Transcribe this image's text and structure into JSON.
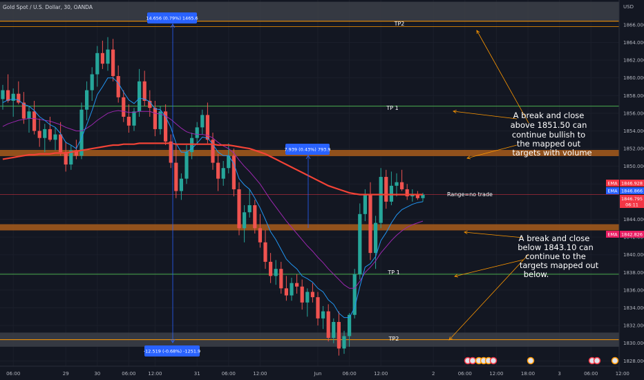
{
  "header": {
    "symbol_title": "Gold Spot / U.S. Dollar, 30, OANDA",
    "currency": "USD"
  },
  "chart_data": {
    "type": "candlestick",
    "title": "Gold Spot / U.S. Dollar, 30, OANDA",
    "ylabel": "USD",
    "ylim": [
      1827.4,
      1868.8
    ],
    "y_ticks": [
      1866.0,
      1864.0,
      1862.0,
      1860.0,
      1858.0,
      1856.0,
      1854.0,
      1852.0,
      1850.0,
      1848.0,
      1844.0,
      1842.0,
      1840.0,
      1838.0,
      1836.0,
      1834.0,
      1832.0,
      1830.0,
      1828.0
    ],
    "x_ticks": [
      {
        "label": "06:00",
        "i": 2
      },
      {
        "label": "29",
        "i": 12
      },
      {
        "label": "30",
        "i": 18
      },
      {
        "label": "06:00",
        "i": 24
      },
      {
        "label": "12:00",
        "i": 29
      },
      {
        "label": "31",
        "i": 37
      },
      {
        "label": "06:00",
        "i": 43
      },
      {
        "label": "12:00",
        "i": 49
      },
      {
        "label": "Jun",
        "i": 60
      },
      {
        "label": "06:00",
        "i": 66
      },
      {
        "label": "12:00",
        "i": 72
      },
      {
        "label": "2",
        "i": 82
      },
      {
        "label": "06:00",
        "i": 88
      },
      {
        "label": "12:00",
        "i": 94
      },
      {
        "label": "18:00",
        "i": 100
      },
      {
        "label": "3",
        "i": 106
      },
      {
        "label": "06:00",
        "i": 112
      },
      {
        "label": "12:00",
        "i": 118
      }
    ],
    "candles": [
      [
        1857.6,
        1859.2,
        1856.4,
        1858.6
      ],
      [
        1858.6,
        1860.4,
        1857.2,
        1857.4
      ],
      [
        1857.4,
        1858.8,
        1855.6,
        1858.2
      ],
      [
        1858.2,
        1859.6,
        1857.0,
        1857.2
      ],
      [
        1857.2,
        1858.4,
        1854.8,
        1855.4
      ],
      [
        1855.4,
        1856.8,
        1853.8,
        1856.2
      ],
      [
        1856.2,
        1857.4,
        1853.6,
        1854.0
      ],
      [
        1854.0,
        1855.4,
        1852.2,
        1853.2
      ],
      [
        1853.2,
        1854.8,
        1851.6,
        1854.2
      ],
      [
        1854.2,
        1855.6,
        1852.8,
        1853.0
      ],
      [
        1853.0,
        1854.4,
        1851.8,
        1853.6
      ],
      [
        1853.6,
        1855.0,
        1851.2,
        1851.6
      ],
      [
        1851.6,
        1852.8,
        1849.4,
        1850.2
      ],
      [
        1850.2,
        1852.4,
        1849.6,
        1851.8
      ],
      [
        1851.8,
        1853.0,
        1850.8,
        1851.2
      ],
      [
        1851.2,
        1857.2,
        1850.8,
        1856.4
      ],
      [
        1856.4,
        1859.6,
        1855.2,
        1858.6
      ],
      [
        1858.6,
        1861.2,
        1857.4,
        1860.4
      ],
      [
        1860.4,
        1863.6,
        1859.0,
        1862.8
      ],
      [
        1862.8,
        1864.2,
        1861.0,
        1861.6
      ],
      [
        1861.6,
        1864.6,
        1860.8,
        1863.2
      ],
      [
        1863.2,
        1864.4,
        1859.6,
        1860.2
      ],
      [
        1860.2,
        1861.4,
        1857.2,
        1857.8
      ],
      [
        1857.8,
        1858.6,
        1855.0,
        1855.6
      ],
      [
        1855.6,
        1857.0,
        1853.8,
        1854.6
      ],
      [
        1854.6,
        1856.6,
        1854.0,
        1856.2
      ],
      [
        1856.2,
        1861.0,
        1855.6,
        1859.6
      ],
      [
        1859.6,
        1860.8,
        1856.8,
        1857.4
      ],
      [
        1857.4,
        1858.6,
        1855.6,
        1856.6
      ],
      [
        1856.6,
        1857.4,
        1853.4,
        1854.2
      ],
      [
        1854.2,
        1856.8,
        1853.6,
        1856.2
      ],
      [
        1856.2,
        1857.0,
        1852.4,
        1852.8
      ],
      [
        1852.8,
        1853.6,
        1849.8,
        1850.4
      ],
      [
        1850.4,
        1852.6,
        1846.4,
        1847.2
      ],
      [
        1847.2,
        1849.2,
        1846.2,
        1848.6
      ],
      [
        1848.6,
        1852.4,
        1848.0,
        1851.6
      ],
      [
        1851.6,
        1853.8,
        1850.8,
        1853.2
      ],
      [
        1853.2,
        1855.0,
        1852.4,
        1854.4
      ],
      [
        1854.4,
        1856.4,
        1853.6,
        1855.8
      ],
      [
        1855.8,
        1857.2,
        1852.6,
        1853.0
      ],
      [
        1853.0,
        1853.8,
        1849.6,
        1850.4
      ],
      [
        1850.4,
        1851.4,
        1847.2,
        1848.6
      ],
      [
        1848.6,
        1850.6,
        1847.8,
        1849.8
      ],
      [
        1849.8,
        1852.6,
        1849.2,
        1851.2
      ],
      [
        1851.2,
        1852.0,
        1846.6,
        1847.4
      ],
      [
        1847.4,
        1848.2,
        1842.2,
        1843.0
      ],
      [
        1843.0,
        1845.6,
        1841.4,
        1844.8
      ],
      [
        1844.8,
        1847.4,
        1844.2,
        1845.6
      ],
      [
        1845.6,
        1846.2,
        1842.4,
        1843.0
      ],
      [
        1843.0,
        1844.6,
        1840.8,
        1841.4
      ],
      [
        1841.4,
        1842.8,
        1838.4,
        1839.2
      ],
      [
        1839.2,
        1840.2,
        1836.8,
        1837.6
      ],
      [
        1837.6,
        1839.4,
        1836.6,
        1838.4
      ],
      [
        1838.4,
        1839.2,
        1835.6,
        1836.2
      ],
      [
        1836.2,
        1837.6,
        1834.8,
        1835.4
      ],
      [
        1835.4,
        1837.4,
        1834.8,
        1836.8
      ],
      [
        1836.8,
        1837.8,
        1835.6,
        1836.4
      ],
      [
        1836.4,
        1837.2,
        1833.8,
        1834.6
      ],
      [
        1834.6,
        1836.2,
        1833.0,
        1835.8
      ],
      [
        1835.8,
        1836.8,
        1834.6,
        1835.2
      ],
      [
        1835.2,
        1835.8,
        1832.0,
        1832.8
      ],
      [
        1832.8,
        1834.2,
        1831.6,
        1833.6
      ],
      [
        1833.6,
        1834.4,
        1830.2,
        1830.6
      ],
      [
        1830.6,
        1832.8,
        1830.0,
        1832.4
      ],
      [
        1832.4,
        1833.6,
        1828.6,
        1829.4
      ],
      [
        1829.4,
        1831.4,
        1828.8,
        1830.8
      ],
      [
        1830.8,
        1833.4,
        1829.6,
        1833.2
      ],
      [
        1833.2,
        1838.4,
        1832.8,
        1837.8
      ],
      [
        1837.8,
        1845.8,
        1837.2,
        1844.6
      ],
      [
        1844.6,
        1847.4,
        1843.8,
        1846.8
      ],
      [
        1846.8,
        1848.2,
        1839.4,
        1840.2
      ],
      [
        1840.2,
        1844.4,
        1838.4,
        1843.6
      ],
      [
        1843.6,
        1849.8,
        1843.0,
        1848.8
      ],
      [
        1848.8,
        1849.6,
        1845.2,
        1846.0
      ],
      [
        1846.0,
        1849.4,
        1845.6,
        1847.8
      ],
      [
        1847.8,
        1849.2,
        1846.6,
        1848.2
      ],
      [
        1848.2,
        1849.6,
        1847.2,
        1847.4
      ],
      [
        1847.4,
        1848.0,
        1846.2,
        1846.6
      ],
      [
        1846.6,
        1847.4,
        1846.0,
        1846.8
      ],
      [
        1846.8,
        1847.2,
        1846.2,
        1846.4
      ],
      [
        1846.4,
        1847.0,
        1846.0,
        1846.8
      ]
    ],
    "ema_fast": [
      1857.2,
      1857.5,
      1857.6,
      1857.5,
      1857.0,
      1856.8,
      1856.3,
      1855.6,
      1855.2,
      1854.7,
      1854.4,
      1853.7,
      1852.7,
      1852.4,
      1852.0,
      1853.2,
      1854.7,
      1856.3,
      1858.1,
      1859.0,
      1860.0,
      1860.0,
      1859.4,
      1858.4,
      1857.5,
      1857.1,
      1857.7,
      1857.6,
      1857.3,
      1856.5,
      1856.4,
      1855.6,
      1854.4,
      1852.6,
      1851.6,
      1851.6,
      1852.0,
      1852.6,
      1853.3,
      1853.2,
      1852.5,
      1851.6,
      1851.2,
      1851.2,
      1850.3,
      1848.6,
      1847.9,
      1847.4,
      1846.4,
      1845.3,
      1844.0,
      1842.6,
      1841.7,
      1840.6,
      1839.5,
      1838.9,
      1838.4,
      1837.6,
      1837.3,
      1836.9,
      1836.2,
      1835.8,
      1834.9,
      1834.4,
      1833.4,
      1832.9,
      1832.9,
      1834.0,
      1836.4,
      1838.6,
      1839.0,
      1839.8,
      1841.6,
      1842.5,
      1843.6,
      1844.5,
      1845.1,
      1845.4,
      1845.7,
      1845.9,
      1846.0
    ],
    "ema_slow": [
      1854.5,
      1854.8,
      1855.0,
      1855.2,
      1855.3,
      1855.4,
      1855.4,
      1855.3,
      1855.2,
      1855.1,
      1854.9,
      1854.7,
      1854.4,
      1854.2,
      1854.0,
      1854.0,
      1854.3,
      1854.7,
      1855.2,
      1855.6,
      1856.0,
      1856.2,
      1856.3,
      1856.2,
      1856.1,
      1856.1,
      1856.2,
      1856.2,
      1856.2,
      1856.0,
      1855.9,
      1855.7,
      1855.3,
      1854.8,
      1854.3,
      1853.9,
      1853.7,
      1853.6,
      1853.6,
      1853.5,
      1853.2,
      1852.7,
      1852.3,
      1852.0,
      1851.5,
      1850.7,
      1850.0,
      1849.4,
      1848.7,
      1848.0,
      1847.1,
      1846.2,
      1845.4,
      1844.6,
      1843.8,
      1843.1,
      1842.4,
      1841.7,
      1841.0,
      1840.4,
      1839.7,
      1839.1,
      1838.4,
      1837.8,
      1837.2,
      1836.6,
      1836.2,
      1836.2,
      1837.0,
      1838.0,
      1838.6,
      1839.3,
      1840.2,
      1840.9,
      1841.6,
      1842.2,
      1842.7,
      1843.1,
      1843.4,
      1843.6,
      1843.8
    ],
    "ema_200": [
      1850.8,
      1850.9,
      1851.0,
      1851.1,
      1851.2,
      1851.3,
      1851.3,
      1851.4,
      1851.4,
      1851.4,
      1851.5,
      1851.5,
      1851.5,
      1851.6,
      1851.7,
      1851.8,
      1851.9,
      1852.0,
      1852.1,
      1852.2,
      1852.3,
      1852.4,
      1852.4,
      1852.5,
      1852.5,
      1852.5,
      1852.6,
      1852.6,
      1852.6,
      1852.6,
      1852.6,
      1852.6,
      1852.6,
      1852.5,
      1852.5,
      1852.5,
      1852.5,
      1852.5,
      1852.5,
      1852.5,
      1852.5,
      1852.4,
      1852.4,
      1852.4,
      1852.3,
      1852.2,
      1852.1,
      1852.0,
      1851.8,
      1851.6,
      1851.4,
      1851.1,
      1850.8,
      1850.5,
      1850.2,
      1849.9,
      1849.6,
      1849.3,
      1849.0,
      1848.7,
      1848.4,
      1848.1,
      1847.8,
      1847.6,
      1847.4,
      1847.2,
      1847.0,
      1846.9,
      1846.8,
      1846.8,
      1846.8,
      1846.8,
      1846.8,
      1846.8,
      1846.8,
      1846.8,
      1846.8,
      1846.8,
      1846.8,
      1846.8,
      1846.8
    ]
  },
  "levels": {
    "tp2_top": {
      "price": 1866.4,
      "label": "TP2"
    },
    "tp1_top": {
      "price": 1856.8,
      "label": "TP 1"
    },
    "resistance": {
      "price": 1851.5
    },
    "current": {
      "price": 1846.8
    },
    "support": {
      "price": 1843.1
    },
    "tp1_bottom": {
      "price": 1837.8,
      "label": "TP 1"
    },
    "tp2_bottom": {
      "price": 1830.4,
      "label": "TP2"
    }
  },
  "annotations": {
    "bullish": [
      "A break and close",
      "above 1851.50 can",
      "continue bullish to",
      "the mapped out",
      "targets with volume"
    ],
    "range": "Range=no trade",
    "bearish": [
      "A break and close",
      "below 1843.10 can",
      "continue to the",
      "targets mapped out",
      "below."
    ]
  },
  "measures": {
    "top": "14.656 (0.79%) 1465.6",
    "mid": "7.939 (0.43%) 793.9",
    "bottom": "-12.519 (-0.68%) -1251.9"
  },
  "price_tags": [
    {
      "tag": "EMA",
      "value": "1846.928",
      "color": "#f23645"
    },
    {
      "tag": "EMA",
      "value": "1846.866",
      "color": "#2962ff"
    },
    {
      "tag": "",
      "value": "1846.795",
      "sub": "06:11",
      "color": "#f23645"
    },
    {
      "tag": "EMA",
      "value": "1842.826",
      "color": "#e91e63"
    }
  ],
  "colors": {
    "background": "#131722",
    "up": "#26a69a",
    "down": "#ef5350",
    "ema_fast": "#2196f3",
    "ema_slow": "#9c27b0",
    "ema_200": "#f44336",
    "zone": "#a0581c",
    "tp_line": "#4caf50",
    "tp2_line": "#ff9800",
    "arrow": "#ff9800"
  }
}
